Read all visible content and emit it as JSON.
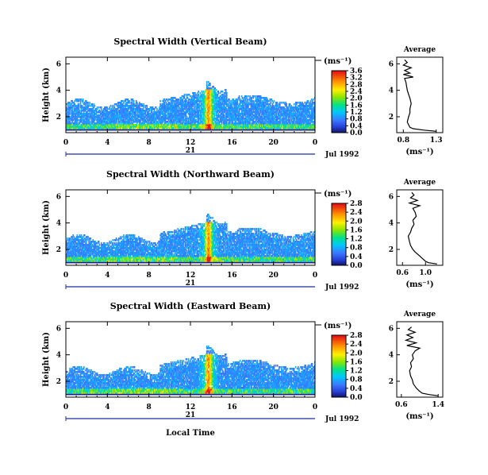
{
  "chart_data": [
    {
      "type": "heatmap",
      "title": "Spectral Width (Vertical Beam)",
      "ylabel": "Height (km)",
      "units": "(ms⁻¹)",
      "xticks": [
        "0",
        "4",
        "8",
        "12",
        "16",
        "20",
        "0"
      ],
      "yticks": [
        "2",
        "4",
        "6"
      ],
      "xlim": [
        0,
        24
      ],
      "ylim": [
        0.8,
        6.5
      ],
      "day": "21",
      "month_year": "Jul 1992",
      "colorbar": {
        "ticks": [
          "0.0",
          "0.4",
          "0.8",
          "1.2",
          "1.6",
          "2.0",
          "2.4",
          "2.8",
          "3.2",
          "3.6"
        ],
        "range": [
          0,
          3.6
        ]
      },
      "profile": {
        "title": "Average",
        "xlabel": "(ms⁻¹)",
        "xticks": [
          "0.8",
          "1.3"
        ],
        "xlim": [
          0.7,
          1.4
        ],
        "yticks": [
          "2",
          "4",
          "6"
        ],
        "ylim": [
          0.8,
          6.5
        ],
        "heights": [
          0.9,
          1.0,
          1.1,
          1.2,
          1.4,
          1.6,
          1.8,
          2.0,
          2.3,
          2.6,
          3.0,
          3.4,
          3.7,
          4.0,
          4.3,
          4.6,
          4.9,
          5.0,
          5.2,
          5.3,
          5.5,
          5.7,
          5.9,
          6.1,
          6.3
        ],
        "values": [
          1.3,
          1.1,
          0.95,
          0.9,
          0.88,
          0.86,
          0.87,
          0.88,
          0.9,
          0.9,
          0.92,
          0.9,
          0.88,
          0.86,
          0.85,
          0.84,
          0.82,
          0.95,
          0.8,
          0.9,
          0.82,
          0.92,
          0.8,
          0.86,
          0.82
        ]
      }
    },
    {
      "type": "heatmap",
      "title": "Spectral Width (Northward Beam)",
      "ylabel": "Height (km)",
      "units": "(ms⁻¹)",
      "xticks": [
        "0",
        "4",
        "8",
        "12",
        "16",
        "20",
        "0"
      ],
      "yticks": [
        "2",
        "4",
        "6"
      ],
      "xlim": [
        0,
        24
      ],
      "ylim": [
        0.8,
        6.5
      ],
      "day": "21",
      "month_year": "Jul 1992",
      "colorbar": {
        "ticks": [
          "0.0",
          "0.4",
          "0.8",
          "1.2",
          "1.6",
          "2.0",
          "2.4",
          "2.8"
        ],
        "range": [
          0,
          2.8
        ]
      },
      "profile": {
        "title": "Average",
        "xlabel": "(ms⁻¹)",
        "xticks": [
          "0.6",
          "1.0"
        ],
        "xlim": [
          0.5,
          1.3
        ],
        "yticks": [
          "2",
          "4",
          "6"
        ],
        "ylim": [
          0.8,
          6.5
        ],
        "heights": [
          0.9,
          1.0,
          1.1,
          1.3,
          1.5,
          1.8,
          2.0,
          2.3,
          2.6,
          3.0,
          3.3,
          3.6,
          3.9,
          4.2,
          4.5,
          4.8,
          5.1,
          5.3,
          5.5,
          5.7,
          5.9,
          6.1,
          6.3
        ],
        "values": [
          1.2,
          1.05,
          1.0,
          0.95,
          0.9,
          0.82,
          0.78,
          0.74,
          0.72,
          0.7,
          0.74,
          0.76,
          0.8,
          0.78,
          0.84,
          0.82,
          0.78,
          0.9,
          0.72,
          0.86,
          0.74,
          0.8,
          0.76
        ]
      }
    },
    {
      "type": "heatmap",
      "title": "Spectral Width (Eastward Beam)",
      "ylabel": "Height (km)",
      "xlabel": "Local Time",
      "units": "(ms⁻¹)",
      "xticks": [
        "0",
        "4",
        "8",
        "12",
        "16",
        "20",
        "0"
      ],
      "yticks": [
        "2",
        "4",
        "6"
      ],
      "xlim": [
        0,
        24
      ],
      "ylim": [
        0.8,
        6.5
      ],
      "day": "21",
      "month_year": "Jul 1992",
      "colorbar": {
        "ticks": [
          "0.0",
          "0.4",
          "0.8",
          "1.2",
          "1.6",
          "2.0",
          "2.4",
          "2.8"
        ],
        "range": [
          0,
          2.8
        ]
      },
      "profile": {
        "title": "Average",
        "xlabel": "(ms⁻¹)",
        "xticks": [
          "0.6",
          "1.4"
        ],
        "xlim": [
          0.5,
          1.5
        ],
        "yticks": [
          "2",
          "4",
          "6"
        ],
        "ylim": [
          0.8,
          6.5
        ],
        "heights": [
          0.9,
          1.0,
          1.1,
          1.3,
          1.5,
          1.8,
          2.1,
          2.4,
          2.8,
          3.1,
          3.4,
          3.7,
          4.0,
          4.3,
          4.5,
          4.7,
          4.9,
          5.1,
          5.3,
          5.5,
          5.7,
          5.9,
          6.1
        ],
        "values": [
          1.4,
          1.2,
          1.05,
          0.98,
          0.92,
          0.86,
          0.84,
          0.8,
          0.78,
          0.82,
          0.8,
          0.86,
          0.84,
          0.9,
          1.0,
          0.72,
          0.92,
          0.7,
          0.85,
          0.72,
          0.9,
          0.75,
          0.82
        ]
      }
    }
  ]
}
